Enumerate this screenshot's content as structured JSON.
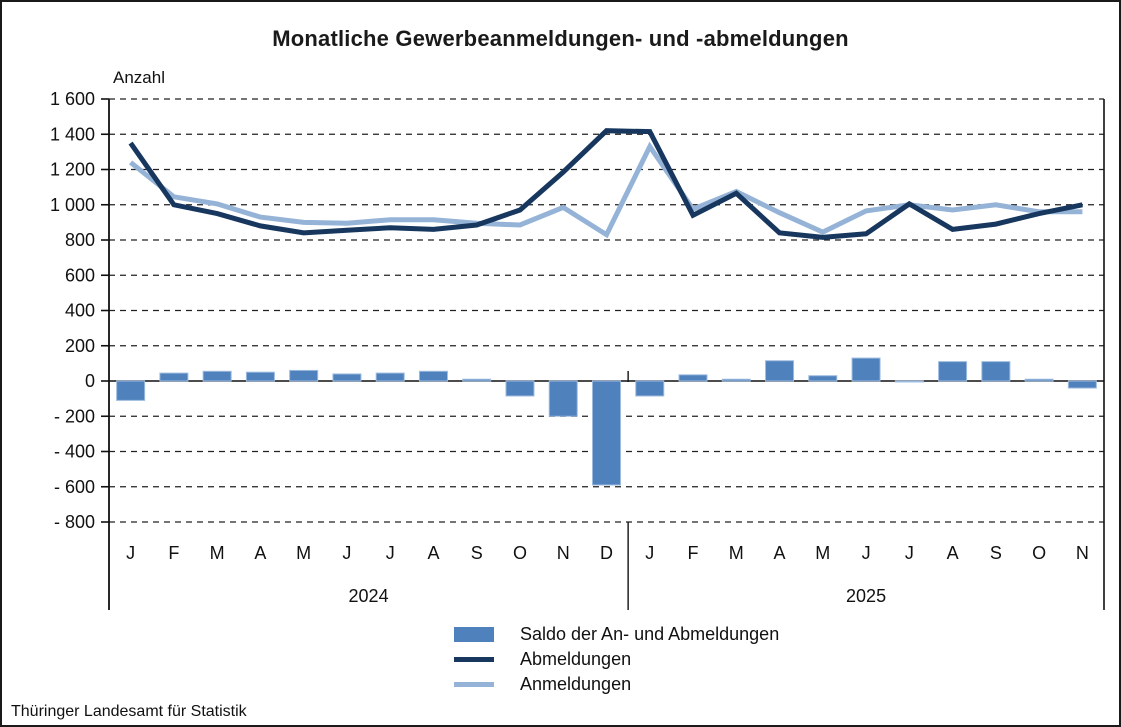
{
  "title": "Monatliche Gewerbeanmeldungen- und -abmeldungen",
  "footer": {
    "source": "Thüringer Landesamt für Statistik"
  },
  "chart_data": {
    "type": "combo-bar-line",
    "title": "Monatliche Gewerbeanmeldungen- und -abmeldungen",
    "y_axis_label": "Anzahl",
    "ylim": [
      -800,
      1600
    ],
    "y_tick_step": 200,
    "y_tick_labels": [
      "1 600",
      "1 400",
      "1 200",
      "1 000",
      "800",
      "600",
      "400",
      "200",
      "0",
      "- 200",
      "- 400",
      "- 600",
      "- 800"
    ],
    "grid": "dashed-horizontal",
    "legend_position": "bottom",
    "categories": [
      "J",
      "F",
      "M",
      "A",
      "M",
      "J",
      "J",
      "A",
      "S",
      "O",
      "N",
      "D",
      "J",
      "F",
      "M",
      "A",
      "M",
      "J",
      "J",
      "A",
      "S",
      "O",
      "N"
    ],
    "year_groups": [
      {
        "label": "2024",
        "months": 12
      },
      {
        "label": "2025",
        "months": 11
      }
    ],
    "series": [
      {
        "name": "Saldo der An- und Abmeldungen",
        "type": "bar",
        "color": "#4F81BD",
        "border_color": "#9DBBDF",
        "values": [
          -110,
          45,
          55,
          50,
          60,
          40,
          45,
          55,
          10,
          -85,
          -200,
          -590,
          -85,
          35,
          10,
          115,
          30,
          130,
          -5,
          110,
          110,
          10,
          -40
        ]
      },
      {
        "name": "Abmeldungen",
        "type": "line",
        "color": "#17375E",
        "values": [
          1350,
          1000,
          950,
          880,
          840,
          855,
          870,
          860,
          885,
          970,
          1185,
          1420,
          1415,
          940,
          1065,
          840,
          815,
          835,
          1005,
          860,
          890,
          950,
          1000
        ]
      },
      {
        "name": "Anmeldungen",
        "type": "line",
        "color": "#95B3D7",
        "values": [
          1240,
          1045,
          1005,
          930,
          900,
          895,
          915,
          915,
          895,
          885,
          985,
          830,
          1330,
          975,
          1075,
          955,
          845,
          965,
          1000,
          970,
          1000,
          960,
          960
        ]
      }
    ]
  }
}
